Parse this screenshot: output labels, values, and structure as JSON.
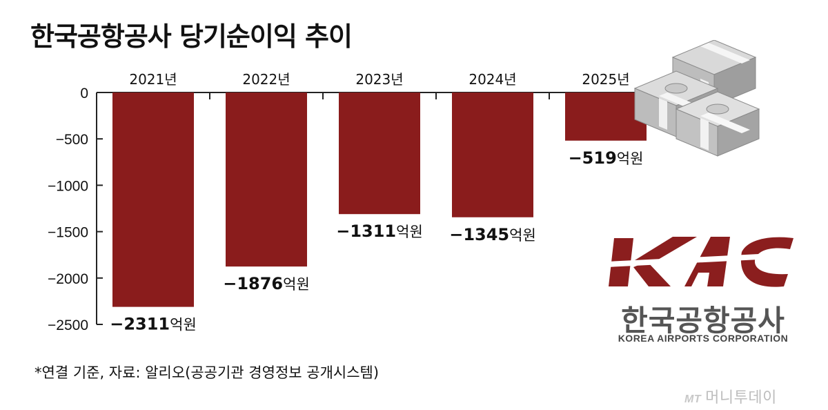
{
  "title": "한국공항공사 당기순이익 추이",
  "footnote": "*연결 기준, 자료: 알리오(공공기관 경영정보 공개시스템)",
  "unit_suffix": "억원",
  "logo": {
    "mark": "KAC",
    "korean_name": "한국공항공사",
    "english_name": "KOREA AIRPORTS CORPORATION",
    "brand_color": "#8B1E1E",
    "gray": "#555555"
  },
  "credit": {
    "mt": "MT",
    "text": "머니투데이"
  },
  "colors": {
    "bar": "#8A1C1C",
    "axis": "#222222",
    "text": "#111111"
  },
  "chart_data": {
    "type": "bar",
    "title": "한국공항공사 당기순이익 추이",
    "categories": [
      "2021년",
      "2022년",
      "2023년",
      "2024년",
      "2025년"
    ],
    "values": [
      -2311,
      -1876,
      -1311,
      -1345,
      -519
    ],
    "data_labels": [
      "−2311",
      "−1876",
      "−1311",
      "−1345",
      "−519"
    ],
    "ylim": [
      -2500,
      0
    ],
    "yticks": [
      0,
      -500,
      -1000,
      -1500,
      -2000,
      -2500
    ],
    "ytick_labels": [
      "0",
      "−500",
      "−1000",
      "−1500",
      "−2000",
      "−2500"
    ],
    "xaxis_position": "top",
    "grid": false,
    "legend": "none"
  }
}
